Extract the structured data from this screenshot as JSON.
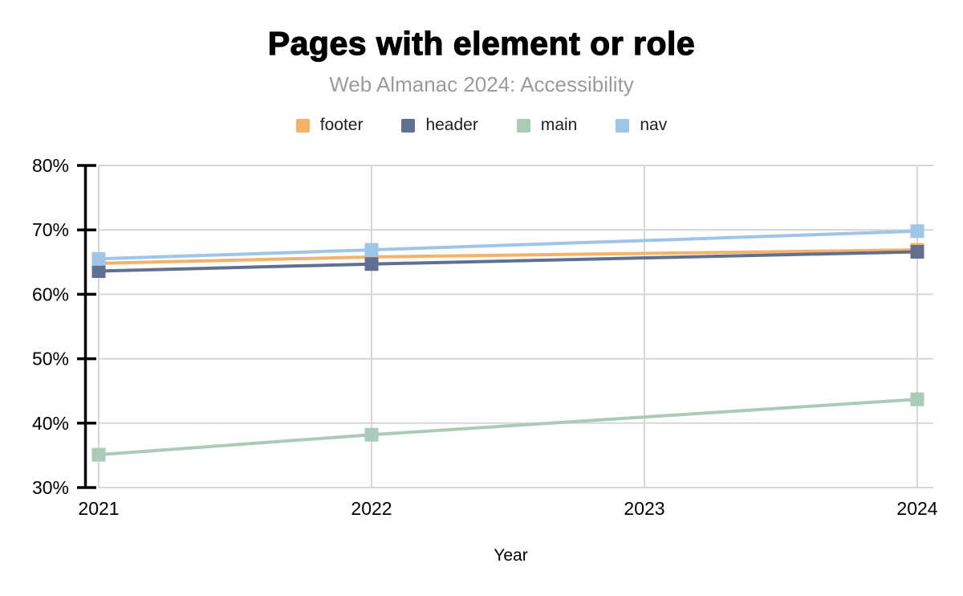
{
  "chart_data": {
    "type": "line",
    "title": "Pages with element or role",
    "subtitle": "Web Almanac 2024: Accessibility",
    "xlabel": "Year",
    "x_ticks": [
      2021,
      2022,
      2023,
      2024
    ],
    "x_range": [
      2021,
      2024
    ],
    "ylim": [
      30,
      80
    ],
    "y_ticks": [
      30,
      40,
      50,
      60,
      70,
      80
    ],
    "y_tick_suffix": "%",
    "grid": true,
    "legend_position": "top",
    "marker": "square",
    "note": "No data markers at 2023; lines interpolate straight from 2022 to 2024.",
    "series": [
      {
        "name": "footer",
        "color": "#F6B26B",
        "x": [
          2021,
          2022,
          2024
        ],
        "values": [
          64.8,
          65.8,
          66.9
        ]
      },
      {
        "name": "header",
        "color": "#5F7090",
        "x": [
          2021,
          2022,
          2024
        ],
        "values": [
          63.6,
          64.7,
          66.6
        ]
      },
      {
        "name": "main",
        "color": "#A9CBB7",
        "x": [
          2021,
          2022,
          2024
        ],
        "values": [
          35.1,
          38.2,
          43.7
        ]
      },
      {
        "name": "nav",
        "color": "#9FC5E8",
        "x": [
          2021,
          2022,
          2024
        ],
        "values": [
          65.5,
          66.9,
          69.8
        ]
      }
    ],
    "colors": {
      "grid": "#D7D7D7",
      "axis": "#000000",
      "tick_label": "#000000",
      "subtitle": "#9b9b9b"
    }
  }
}
